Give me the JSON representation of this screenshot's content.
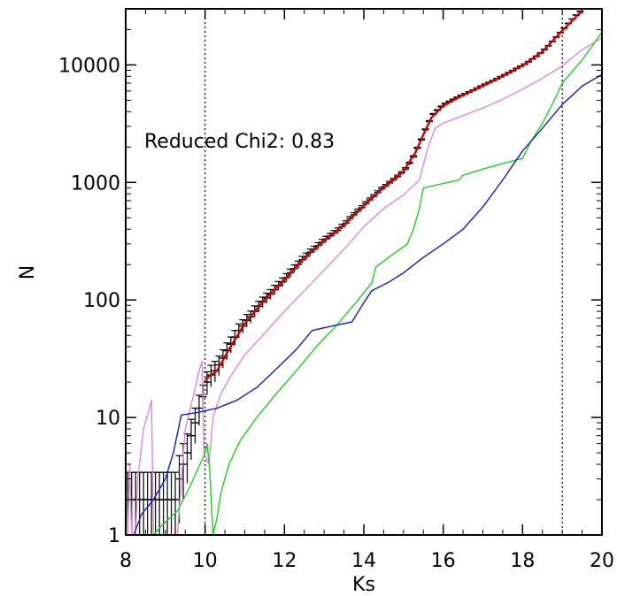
{
  "chart_data": {
    "type": "line",
    "title": "",
    "xlabel": "Ks",
    "ylabel": "N",
    "xlim": [
      8,
      20
    ],
    "ylim": [
      1,
      30000
    ],
    "yscale": "log",
    "grid": false,
    "legend": "none",
    "x_ticks": [
      "8",
      "10",
      "12",
      "14",
      "16",
      "18",
      "20"
    ],
    "y_ticks": [
      "1",
      "10",
      "100",
      "1000",
      "10000"
    ],
    "annotation": "Reduced Chi2: 0.83",
    "vlines": [
      10,
      19
    ],
    "series": [
      {
        "color": "#000000",
        "style": "errorbar",
        "points": [
          [
            8.05,
            2
          ],
          [
            8.15,
            2
          ],
          [
            8.25,
            2
          ],
          [
            8.35,
            2
          ],
          [
            8.45,
            2
          ],
          [
            8.55,
            2
          ],
          [
            8.65,
            2
          ],
          [
            8.75,
            2
          ],
          [
            8.85,
            2
          ],
          [
            8.95,
            2
          ],
          [
            9.05,
            2
          ],
          [
            9.15,
            2
          ],
          [
            9.25,
            2
          ],
          [
            9.35,
            3
          ],
          [
            9.45,
            4
          ],
          [
            9.55,
            5
          ],
          [
            9.65,
            7
          ],
          [
            9.75,
            9
          ],
          [
            9.85,
            12
          ],
          [
            9.95,
            15
          ],
          [
            10.05,
            20
          ],
          [
            10.15,
            23
          ],
          [
            10.25,
            25
          ],
          [
            10.35,
            28
          ],
          [
            10.45,
            32
          ],
          [
            10.55,
            37
          ],
          [
            10.65,
            42
          ],
          [
            10.75,
            48
          ],
          [
            10.85,
            55
          ],
          [
            10.95,
            60
          ],
          [
            11.05,
            67
          ],
          [
            11.15,
            72
          ],
          [
            11.25,
            80
          ],
          [
            11.35,
            88
          ],
          [
            11.45,
            96
          ],
          [
            11.55,
            104
          ],
          [
            11.65,
            112
          ],
          [
            11.75,
            122
          ],
          [
            11.85,
            132
          ],
          [
            11.95,
            142
          ],
          [
            12.05,
            155
          ],
          [
            12.15,
            170
          ],
          [
            12.25,
            185
          ],
          [
            12.35,
            200
          ],
          [
            12.45,
            220
          ],
          [
            12.55,
            235
          ],
          [
            12.65,
            255
          ],
          [
            12.75,
            270
          ],
          [
            12.85,
            290
          ],
          [
            12.95,
            310
          ],
          [
            13.05,
            330
          ],
          [
            13.15,
            350
          ],
          [
            13.25,
            370
          ],
          [
            13.35,
            390
          ],
          [
            13.45,
            420
          ],
          [
            13.55,
            450
          ],
          [
            13.65,
            490
          ],
          [
            13.75,
            530
          ],
          [
            13.85,
            570
          ],
          [
            13.95,
            610
          ],
          [
            14.05,
            660
          ],
          [
            14.15,
            710
          ],
          [
            14.25,
            760
          ],
          [
            14.35,
            820
          ],
          [
            14.45,
            880
          ],
          [
            14.55,
            930
          ],
          [
            14.65,
            990
          ],
          [
            14.75,
            1050
          ],
          [
            14.85,
            1120
          ],
          [
            14.95,
            1200
          ],
          [
            15.05,
            1300
          ],
          [
            15.15,
            1450
          ],
          [
            15.25,
            1650
          ],
          [
            15.35,
            1950
          ],
          [
            15.45,
            2300
          ],
          [
            15.55,
            2800
          ],
          [
            15.65,
            3300
          ],
          [
            15.75,
            3800
          ],
          [
            15.85,
            4100
          ],
          [
            15.95,
            4400
          ],
          [
            16.05,
            4650
          ],
          [
            16.15,
            4850
          ],
          [
            16.25,
            5050
          ],
          [
            16.35,
            5250
          ],
          [
            16.45,
            5450
          ],
          [
            16.55,
            5650
          ],
          [
            16.65,
            5850
          ],
          [
            16.75,
            6050
          ],
          [
            16.85,
            6300
          ],
          [
            16.95,
            6550
          ],
          [
            17.05,
            6800
          ],
          [
            17.15,
            7050
          ],
          [
            17.25,
            7300
          ],
          [
            17.35,
            7600
          ],
          [
            17.45,
            7900
          ],
          [
            17.55,
            8200
          ],
          [
            17.65,
            8550
          ],
          [
            17.75,
            8900
          ],
          [
            17.85,
            9300
          ],
          [
            17.95,
            9700
          ],
          [
            18.05,
            10100
          ],
          [
            18.15,
            10600
          ],
          [
            18.25,
            11200
          ],
          [
            18.35,
            11800
          ],
          [
            18.45,
            12600
          ],
          [
            18.55,
            13500
          ],
          [
            18.65,
            14500
          ],
          [
            18.75,
            15800
          ],
          [
            18.85,
            17200
          ],
          [
            18.95,
            18800
          ],
          [
            19.05,
            20500
          ],
          [
            19.15,
            22500
          ],
          [
            19.25,
            24500
          ],
          [
            19.35,
            26500
          ],
          [
            19.45,
            28500
          ],
          [
            19.55,
            30000
          ]
        ]
      },
      {
        "color": "#d00000",
        "style": "line",
        "points": [
          [
            10.0,
            21
          ],
          [
            10.3,
            25
          ],
          [
            10.6,
            38
          ],
          [
            11.0,
            63
          ],
          [
            11.5,
            100
          ],
          [
            12.0,
            148
          ],
          [
            12.5,
            228
          ],
          [
            13.0,
            320
          ],
          [
            13.5,
            435
          ],
          [
            14.0,
            635
          ],
          [
            14.5,
            905
          ],
          [
            15.0,
            1250
          ],
          [
            15.3,
            1800
          ],
          [
            15.5,
            2550
          ],
          [
            15.7,
            3550
          ],
          [
            16.0,
            4500
          ],
          [
            16.5,
            5550
          ],
          [
            17.0,
            6650
          ],
          [
            17.5,
            8050
          ],
          [
            18.0,
            9900
          ],
          [
            18.5,
            13000
          ],
          [
            19.0,
            19600
          ],
          [
            19.5,
            29000
          ]
        ]
      },
      {
        "color": "#dd88dd",
        "style": "line",
        "points": [
          [
            8.05,
            1
          ],
          [
            8.1,
            4
          ],
          [
            8.15,
            1
          ],
          [
            8.25,
            1
          ],
          [
            8.3,
            3
          ],
          [
            8.45,
            8
          ],
          [
            8.6,
            12
          ],
          [
            8.65,
            14
          ],
          [
            8.7,
            1
          ],
          [
            9.3,
            1
          ],
          [
            9.5,
            8
          ],
          [
            9.7,
            15
          ],
          [
            9.85,
            25
          ],
          [
            9.92,
            30
          ],
          [
            9.97,
            5
          ],
          [
            10.1,
            4
          ],
          [
            10.2,
            10
          ],
          [
            10.4,
            16
          ],
          [
            10.7,
            24
          ],
          [
            11.0,
            34
          ],
          [
            11.5,
            52
          ],
          [
            12.0,
            80
          ],
          [
            12.5,
            120
          ],
          [
            13.0,
            180
          ],
          [
            13.5,
            270
          ],
          [
            14.0,
            420
          ],
          [
            14.5,
            600
          ],
          [
            15.0,
            780
          ],
          [
            15.4,
            1050
          ],
          [
            15.6,
            1900
          ],
          [
            15.8,
            2900
          ],
          [
            16.0,
            3200
          ],
          [
            16.5,
            3700
          ],
          [
            17.0,
            4300
          ],
          [
            17.5,
            5100
          ],
          [
            18.0,
            6200
          ],
          [
            18.5,
            7700
          ],
          [
            19.0,
            9800
          ],
          [
            19.5,
            13500
          ],
          [
            20.0,
            17000
          ]
        ]
      },
      {
        "color": "#22cc22",
        "style": "line",
        "points": [
          [
            8.7,
            1
          ],
          [
            8.9,
            1.2
          ],
          [
            9.3,
            1.6
          ],
          [
            9.6,
            2.5
          ],
          [
            10.0,
            5
          ],
          [
            10.05,
            6
          ],
          [
            10.12,
            3.5
          ],
          [
            10.2,
            1
          ],
          [
            10.3,
            1.4
          ],
          [
            10.4,
            2.3
          ],
          [
            10.6,
            4
          ],
          [
            10.9,
            6.5
          ],
          [
            11.3,
            10
          ],
          [
            11.8,
            16
          ],
          [
            12.3,
            25
          ],
          [
            12.8,
            40
          ],
          [
            13.3,
            60
          ],
          [
            13.8,
            95
          ],
          [
            14.2,
            140
          ],
          [
            14.3,
            190
          ],
          [
            14.7,
            240
          ],
          [
            15.1,
            300
          ],
          [
            15.25,
            400
          ],
          [
            15.4,
            600
          ],
          [
            15.5,
            900
          ],
          [
            16.0,
            980
          ],
          [
            16.4,
            1050
          ],
          [
            16.5,
            1150
          ],
          [
            17.0,
            1300
          ],
          [
            17.5,
            1450
          ],
          [
            18.0,
            1600
          ],
          [
            18.2,
            2200
          ],
          [
            18.5,
            3200
          ],
          [
            18.8,
            5000
          ],
          [
            19.0,
            7000
          ],
          [
            19.5,
            11000
          ],
          [
            20.0,
            19000
          ]
        ]
      },
      {
        "color": "#1a1acc",
        "style": "line",
        "points": [
          [
            8.2,
            1
          ],
          [
            8.4,
            1.5
          ],
          [
            8.7,
            2
          ],
          [
            9.0,
            3
          ],
          [
            9.2,
            5
          ],
          [
            9.4,
            10.5
          ],
          [
            9.8,
            11
          ],
          [
            10.3,
            12
          ],
          [
            10.8,
            14
          ],
          [
            11.3,
            18
          ],
          [
            11.8,
            26
          ],
          [
            12.3,
            38
          ],
          [
            12.7,
            55
          ],
          [
            13.2,
            60
          ],
          [
            13.7,
            65
          ],
          [
            14.0,
            95
          ],
          [
            14.2,
            120
          ],
          [
            14.6,
            140
          ],
          [
            15.0,
            170
          ],
          [
            15.5,
            230
          ],
          [
            16.0,
            300
          ],
          [
            16.5,
            400
          ],
          [
            17.0,
            620
          ],
          [
            17.5,
            1050
          ],
          [
            18.0,
            1850
          ],
          [
            18.5,
            2900
          ],
          [
            19.0,
            4600
          ],
          [
            19.5,
            6600
          ],
          [
            20.0,
            8300
          ]
        ]
      }
    ]
  }
}
